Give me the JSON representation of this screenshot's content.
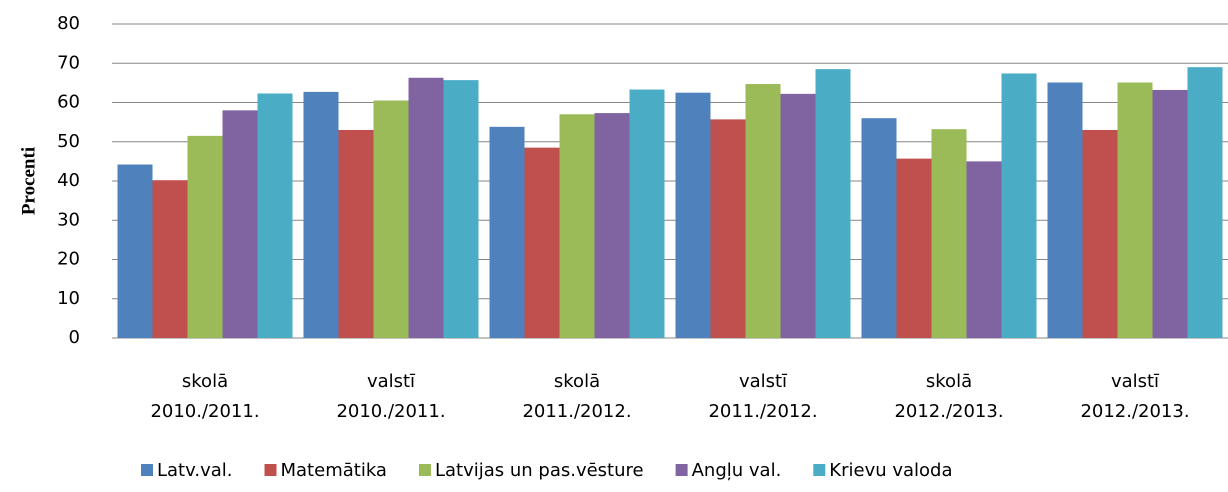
{
  "chart_data": {
    "type": "bar",
    "ylabel": "Procenti",
    "categories": [
      [
        "skolā",
        "2010./2011."
      ],
      [
        "valstī",
        "2010./2011."
      ],
      [
        "skolā",
        "2011./2012."
      ],
      [
        "valstī",
        "2011./2012."
      ],
      [
        "skolā",
        "2012./2013."
      ],
      [
        "valstī",
        "2012./2013."
      ]
    ],
    "series": [
      {
        "name": "Latv.val.",
        "color": "#4f81bd",
        "values": [
          44.2,
          62.7,
          53.8,
          62.5,
          56,
          65.1
        ]
      },
      {
        "name": "Matemātika",
        "color": "#c0504d",
        "values": [
          40.2,
          53,
          48.5,
          55.7,
          45.7,
          53
        ]
      },
      {
        "name": "Latvijas un pas.vēsture",
        "color": "#9bbb59",
        "values": [
          51.5,
          60.5,
          57,
          64.7,
          53.2,
          65.1
        ]
      },
      {
        "name": "Angļu val.",
        "color": "#8064a2",
        "values": [
          58,
          66.3,
          57.3,
          62.2,
          45,
          63.2
        ]
      },
      {
        "name": "Krievu valoda",
        "color": "#4bacc6",
        "values": [
          62.3,
          65.7,
          63.3,
          68.5,
          67.4,
          69
        ]
      }
    ],
    "ylim": [
      0,
      80
    ],
    "yticks": [
      0,
      10,
      20,
      30,
      40,
      50,
      60,
      70,
      80
    ],
    "grid": true,
    "legend": "bottom"
  }
}
